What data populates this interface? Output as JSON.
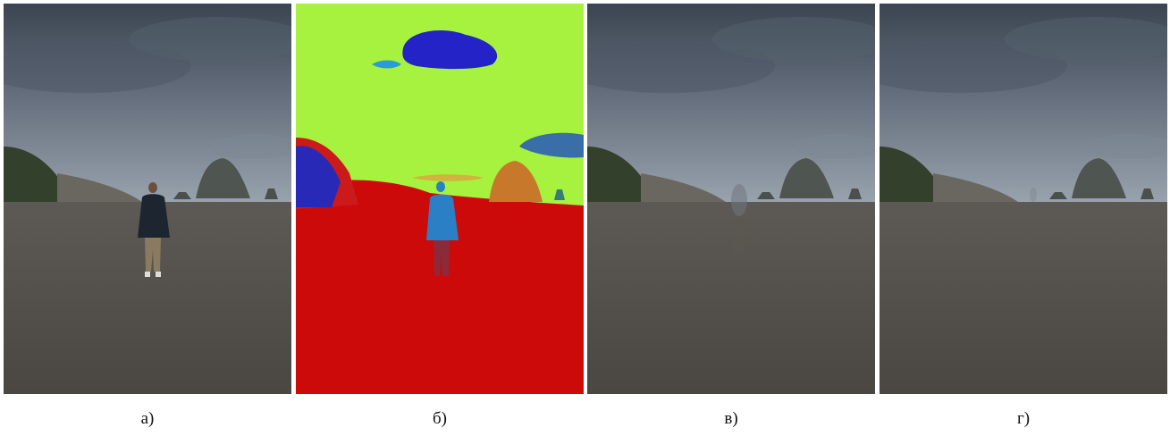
{
  "panels": [
    {
      "id": "a",
      "caption": "а)",
      "content": "original-photo"
    },
    {
      "id": "b",
      "caption": "б)",
      "content": "segmentation-map"
    },
    {
      "id": "c",
      "caption": "в)",
      "content": "person-removed-result-1"
    },
    {
      "id": "d",
      "caption": "г)",
      "content": "person-removed-result-2"
    }
  ],
  "colors": {
    "sky_dark": "#3f4a57",
    "sky_light": "#8f9aa6",
    "ground": "#57534e",
    "haystack": "#4f5550",
    "seg_sky": "#a6f23f",
    "seg_ground": "#cc0a0a",
    "seg_person": "#2b7fc4",
    "seg_cloud": "#2323c8",
    "seg_rock": "#c8782a"
  }
}
